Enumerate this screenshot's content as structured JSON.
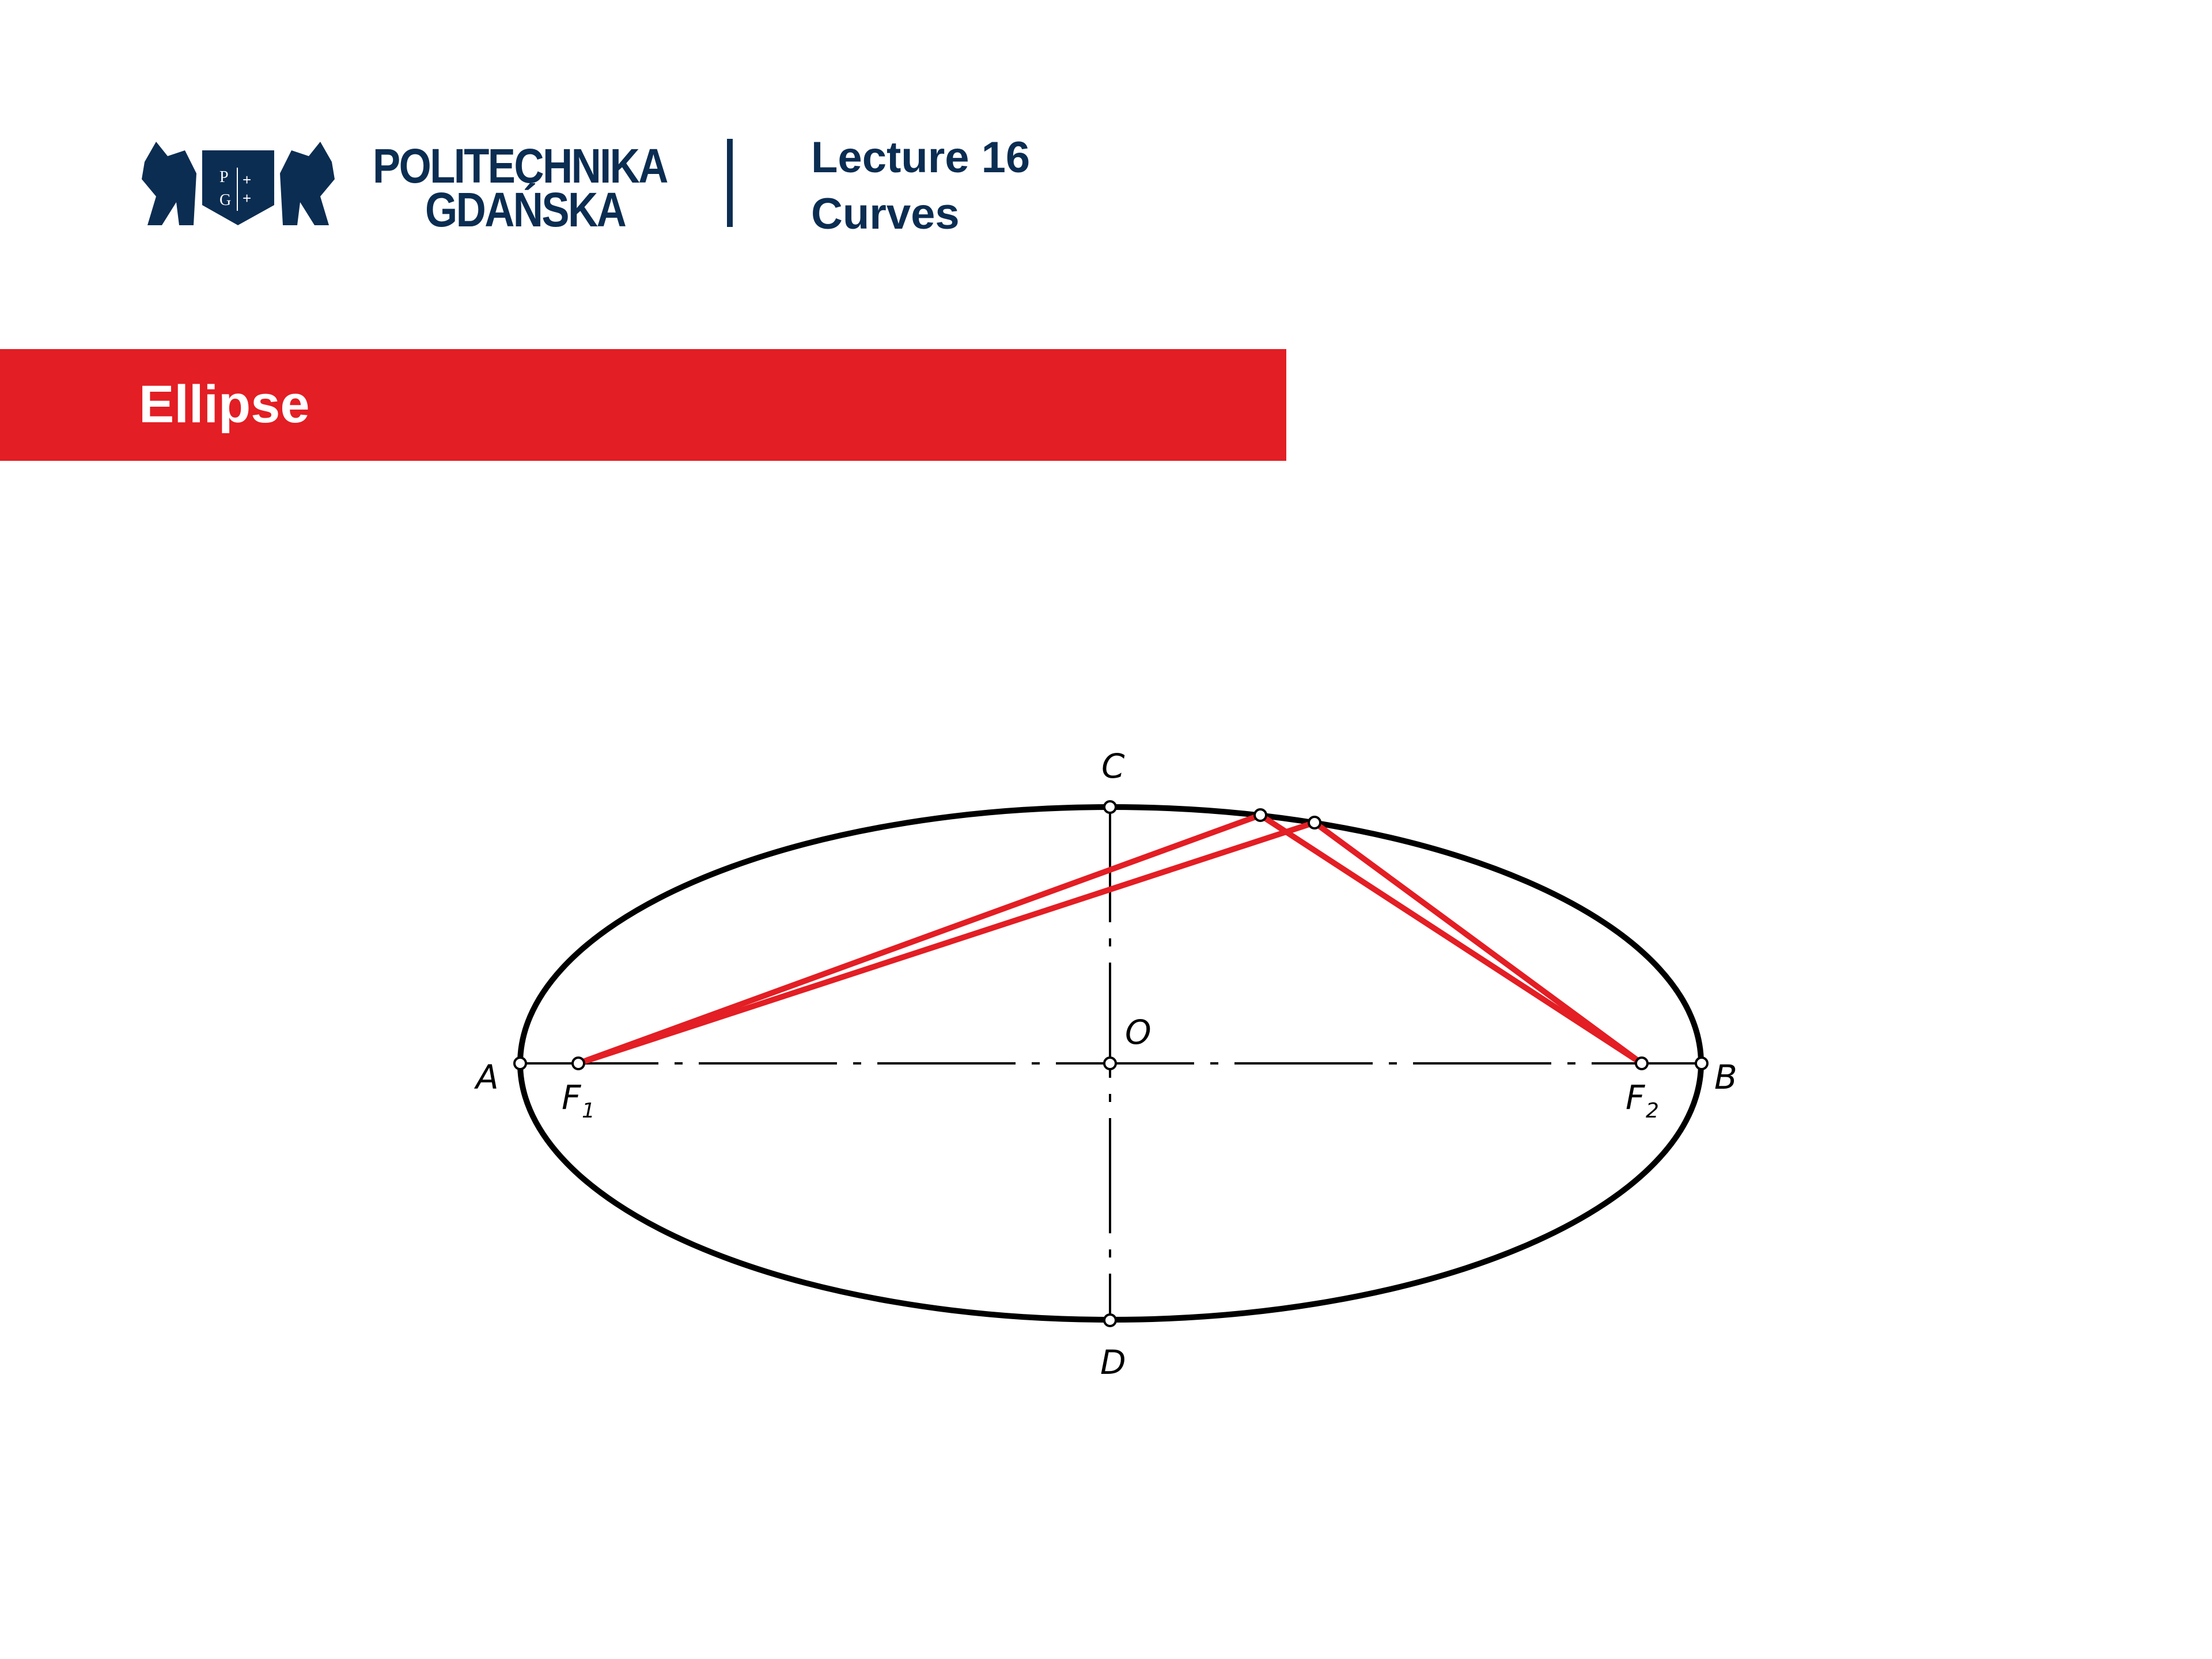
{
  "header": {
    "logo_text": "PG",
    "institution_line1": "POLITECHNIKA",
    "institution_line2": "GDAŃSKA",
    "lecture": "Lecture 16",
    "topic": "Curves"
  },
  "section_title": "Ellipse",
  "colors": {
    "navy": "#0b2d52",
    "accent_red": "#e31e24"
  },
  "figure": {
    "labels": {
      "A": "A",
      "B": "B",
      "C": "C",
      "D": "D",
      "O": "O",
      "F1": "F",
      "F1_sub": "1",
      "F2": "F",
      "F2_sub": "2"
    }
  }
}
